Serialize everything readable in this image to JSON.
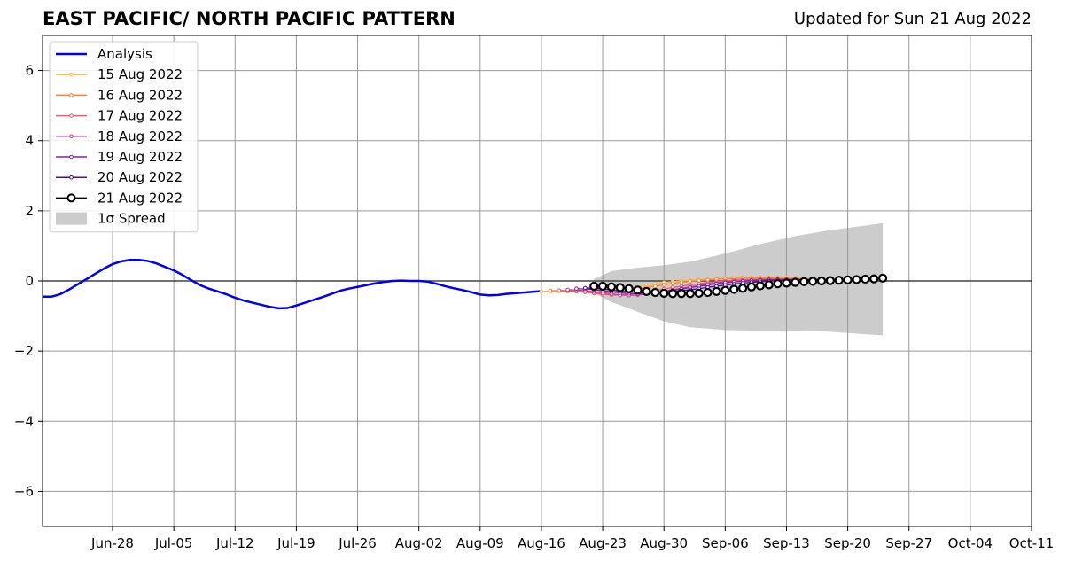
{
  "title": "EAST PACIFIC/ NORTH PACIFIC PATTERN",
  "updated": "Updated for Sun 21 Aug 2022",
  "chart_data": {
    "type": "line",
    "xlim": [
      "2022-06-20",
      "2022-10-11"
    ],
    "ylim": [
      -7,
      7
    ],
    "yticks": [
      -6,
      -4,
      -2,
      0,
      2,
      4,
      6
    ],
    "ytick_labels": [
      "−6",
      "−4",
      "−2",
      "0",
      "2",
      "4",
      "6"
    ],
    "xticks": [
      "2022-06-28",
      "2022-07-05",
      "2022-07-12",
      "2022-07-19",
      "2022-07-26",
      "2022-08-02",
      "2022-08-09",
      "2022-08-16",
      "2022-08-23",
      "2022-08-30",
      "2022-09-06",
      "2022-09-13",
      "2022-09-20",
      "2022-09-27",
      "2022-10-04",
      "2022-10-11"
    ],
    "xtick_labels": [
      "Jun-28",
      "Jul-05",
      "Jul-12",
      "Jul-19",
      "Jul-26",
      "Aug-02",
      "Aug-09",
      "Aug-16",
      "Aug-23",
      "Aug-30",
      "Sep-06",
      "Sep-13",
      "Sep-20",
      "Sep-27",
      "Oct-04",
      "Oct-11"
    ],
    "grid": true,
    "legend_position": "top-left",
    "zero_line": true,
    "analysis": {
      "name": "Analysis",
      "color": "#0000ee",
      "x": [
        "2022-06-20",
        "2022-06-21",
        "2022-06-22",
        "2022-06-23",
        "2022-06-24",
        "2022-06-25",
        "2022-06-26",
        "2022-06-27",
        "2022-06-28",
        "2022-06-29",
        "2022-06-30",
        "2022-07-01",
        "2022-07-02",
        "2022-07-03",
        "2022-07-04",
        "2022-07-05",
        "2022-07-06",
        "2022-07-07",
        "2022-07-08",
        "2022-07-09",
        "2022-07-10",
        "2022-07-11",
        "2022-07-12",
        "2022-07-13",
        "2022-07-14",
        "2022-07-15",
        "2022-07-16",
        "2022-07-17",
        "2022-07-18",
        "2022-07-19",
        "2022-07-20",
        "2022-07-21",
        "2022-07-22",
        "2022-07-23",
        "2022-07-24",
        "2022-07-25",
        "2022-07-26",
        "2022-07-27",
        "2022-07-28",
        "2022-07-29",
        "2022-07-30",
        "2022-07-31",
        "2022-08-01",
        "2022-08-02",
        "2022-08-03",
        "2022-08-04",
        "2022-08-05",
        "2022-08-06",
        "2022-08-07",
        "2022-08-08",
        "2022-08-09",
        "2022-08-10",
        "2022-08-11",
        "2022-08-12",
        "2022-08-13",
        "2022-08-14",
        "2022-08-15",
        "2022-08-16"
      ],
      "y": [
        -0.45,
        -0.45,
        -0.38,
        -0.25,
        -0.1,
        0.05,
        0.2,
        0.35,
        0.48,
        0.56,
        0.6,
        0.6,
        0.57,
        0.5,
        0.4,
        0.3,
        0.17,
        0.02,
        -0.12,
        -0.22,
        -0.3,
        -0.38,
        -0.48,
        -0.56,
        -0.62,
        -0.68,
        -0.74,
        -0.78,
        -0.77,
        -0.7,
        -0.62,
        -0.54,
        -0.46,
        -0.37,
        -0.28,
        -0.22,
        -0.17,
        -0.12,
        -0.07,
        -0.03,
        0.0,
        0.01,
        0.0,
        0.0,
        -0.02,
        -0.08,
        -0.15,
        -0.21,
        -0.26,
        -0.32,
        -0.39,
        -0.41,
        -0.4,
        -0.37,
        -0.35,
        -0.33,
        -0.31,
        -0.29
      ]
    },
    "forecasts": [
      {
        "name": "15 Aug 2022",
        "color": "#fcb93a",
        "start": "2022-08-16",
        "y": [
          -0.3,
          -0.29,
          -0.29,
          -0.3,
          -0.3,
          -0.31,
          -0.31,
          -0.3,
          -0.28,
          -0.25,
          -0.21,
          -0.17,
          -0.13,
          -0.09,
          -0.05,
          -0.02,
          0.0,
          0.02,
          0.04,
          0.05,
          0.07,
          0.08,
          0.09,
          0.1,
          0.1,
          0.1,
          0.1,
          0.1,
          0.09,
          0.08,
          0.07
        ]
      },
      {
        "name": "16 Aug 2022",
        "color": "#f7813b",
        "start": "2022-08-17",
        "y": [
          -0.28,
          -0.28,
          -0.29,
          -0.3,
          -0.31,
          -0.32,
          -0.33,
          -0.32,
          -0.3,
          -0.27,
          -0.23,
          -0.19,
          -0.15,
          -0.11,
          -0.07,
          -0.04,
          -0.01,
          0.01,
          0.03,
          0.05,
          0.06,
          0.07,
          0.08,
          0.08,
          0.08,
          0.08,
          0.08,
          0.07,
          0.07,
          0.06
        ]
      },
      {
        "name": "17 Aug 2022",
        "color": "#e15e6a",
        "start": "2022-08-18",
        "y": [
          -0.27,
          -0.28,
          -0.3,
          -0.32,
          -0.35,
          -0.38,
          -0.4,
          -0.4,
          -0.38,
          -0.35,
          -0.31,
          -0.27,
          -0.23,
          -0.19,
          -0.15,
          -0.11,
          -0.08,
          -0.05,
          -0.02,
          0.0,
          0.02,
          0.03,
          0.04,
          0.05,
          0.05,
          0.05,
          0.05,
          0.05,
          0.05,
          0.05
        ]
      },
      {
        "name": "18 Aug 2022",
        "color": "#c03e8a",
        "start": "2022-08-19",
        "y": [
          -0.25,
          -0.26,
          -0.28,
          -0.31,
          -0.34,
          -0.37,
          -0.4,
          -0.41,
          -0.4,
          -0.37,
          -0.33,
          -0.29,
          -0.25,
          -0.21,
          -0.17,
          -0.13,
          -0.09,
          -0.06,
          -0.03,
          -0.01,
          0.01,
          0.02,
          0.03,
          0.04,
          0.04,
          0.04,
          0.04,
          0.04,
          0.04,
          0.04
        ]
      },
      {
        "name": "19 Aug 2022",
        "color": "#8a1ea8",
        "start": "2022-08-20",
        "y": [
          -0.22,
          -0.23,
          -0.25,
          -0.28,
          -0.31,
          -0.34,
          -0.36,
          -0.37,
          -0.36,
          -0.34,
          -0.31,
          -0.27,
          -0.23,
          -0.19,
          -0.15,
          -0.12,
          -0.08,
          -0.05,
          -0.03,
          -0.01,
          0.01,
          0.02,
          0.03,
          0.04,
          0.04,
          0.04,
          0.04,
          0.04,
          0.04,
          0.04
        ]
      },
      {
        "name": "20 Aug 2022",
        "color": "#4a0e8f",
        "start": "2022-08-21",
        "y": [
          -0.2,
          -0.21,
          -0.23,
          -0.26,
          -0.29,
          -0.31,
          -0.33,
          -0.34,
          -0.34,
          -0.33,
          -0.31,
          -0.28,
          -0.25,
          -0.22,
          -0.18,
          -0.15,
          -0.12,
          -0.09,
          -0.06,
          -0.04,
          -0.02,
          0.0,
          0.01,
          0.02,
          0.03,
          0.03,
          0.04,
          0.04,
          0.04,
          0.04
        ]
      },
      {
        "name": "21 Aug 2022",
        "color": "#000000",
        "start": "2022-08-22",
        "y": [
          -0.15,
          -0.15,
          -0.17,
          -0.19,
          -0.22,
          -0.26,
          -0.3,
          -0.33,
          -0.35,
          -0.36,
          -0.36,
          -0.36,
          -0.35,
          -0.33,
          -0.3,
          -0.27,
          -0.24,
          -0.21,
          -0.17,
          -0.14,
          -0.11,
          -0.08,
          -0.06,
          -0.04,
          -0.02,
          -0.01,
          0.0,
          0.01,
          0.02,
          0.03,
          0.04,
          0.05,
          0.06,
          0.08
        ]
      }
    ],
    "spread": {
      "name": "1σ Spread",
      "color": "#cccccc",
      "x": [
        "2022-08-22",
        "2022-08-24",
        "2022-08-27",
        "2022-08-30",
        "2022-09-02",
        "2022-09-06",
        "2022-09-10",
        "2022-09-14",
        "2022-09-18",
        "2022-09-22",
        "2022-09-24"
      ],
      "upper": [
        0.05,
        0.28,
        0.38,
        0.45,
        0.55,
        0.78,
        1.05,
        1.28,
        1.45,
        1.58,
        1.65
      ],
      "lower": [
        -0.35,
        -0.6,
        -0.88,
        -1.15,
        -1.32,
        -1.4,
        -1.42,
        -1.42,
        -1.45,
        -1.52,
        -1.55
      ]
    }
  }
}
